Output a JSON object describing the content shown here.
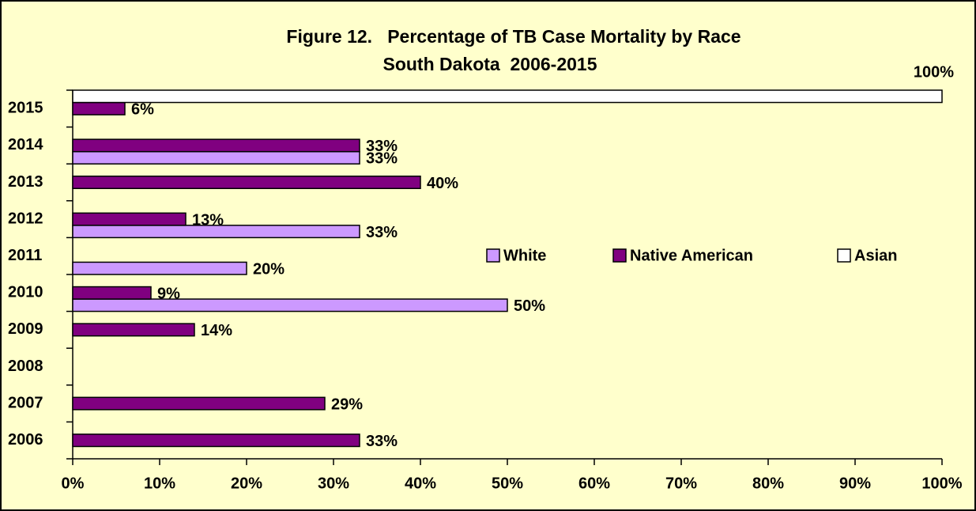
{
  "chart_data": {
    "type": "hbar",
    "title": [
      "Figure 12.   Percentage of TB Case Mortality by Race",
      "South Dakota  2006-2015"
    ],
    "categories": [
      "2006",
      "2007",
      "2008",
      "2009",
      "2010",
      "2011",
      "2012",
      "2013",
      "2014",
      "2015"
    ],
    "series": [
      {
        "name": "White",
        "color": "#cc99ff",
        "values": [
          null,
          null,
          null,
          null,
          50,
          20,
          33,
          null,
          33,
          null
        ],
        "value_labels": [
          null,
          null,
          null,
          null,
          "50%",
          "20%",
          "33%",
          null,
          "33%",
          null
        ]
      },
      {
        "name": "Native American",
        "color": "#800080",
        "values": [
          33,
          29,
          null,
          14,
          9,
          null,
          13,
          40,
          33,
          6
        ],
        "value_labels": [
          "33%",
          "29%",
          null,
          "14%",
          "9%",
          null,
          "13%",
          "40%",
          "33%",
          "6%"
        ]
      },
      {
        "name": "Asian",
        "color": "#ffffff",
        "values": [
          null,
          null,
          null,
          null,
          null,
          null,
          null,
          null,
          null,
          100
        ],
        "value_labels": [
          null,
          null,
          null,
          null,
          null,
          null,
          null,
          null,
          null,
          "100%"
        ]
      }
    ],
    "xlim": [
      0,
      100
    ],
    "xticks": [
      {
        "value": 0,
        "label": "0%"
      },
      {
        "value": 10,
        "label": "10%"
      },
      {
        "value": 20,
        "label": "20%"
      },
      {
        "value": 30,
        "label": "30%"
      },
      {
        "value": 40,
        "label": "40%"
      },
      {
        "value": 50,
        "label": "50%"
      },
      {
        "value": 60,
        "label": "60%"
      },
      {
        "value": 70,
        "label": "70%"
      },
      {
        "value": 80,
        "label": "80%"
      },
      {
        "value": 90,
        "label": "90%"
      },
      {
        "value": 100,
        "label": "100%"
      }
    ],
    "legend": "right"
  }
}
